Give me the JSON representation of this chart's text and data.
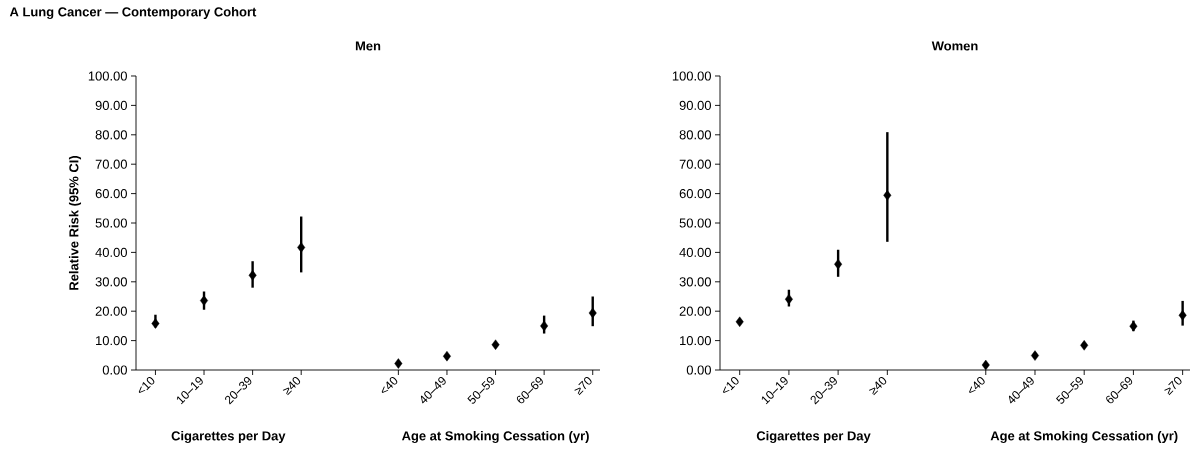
{
  "chart_data": [
    {
      "type": "scatter",
      "title": "Men",
      "ylabel": "Relative Risk (95% CI)",
      "xlabel": "Cigarettes per Day",
      "annotations": [
        "A  Lung Cancer — Contemporary Cohort",
        "Age at Smoking Cessation (yr)"
      ],
      "categories": [
        "<10",
        "10–19",
        "20–39",
        "≥40",
        null,
        "<40",
        "40–49",
        "50–59",
        "60–69",
        "≥70"
      ],
      "color": "#000000",
      "marker": "diamond",
      "values": [
        15.8,
        23.6,
        32.2,
        41.7,
        null,
        2.2,
        4.7,
        8.6,
        15.0,
        19.4
      ],
      "errors": [
        [
          14.5,
          18.8
        ],
        [
          20.5,
          26.7
        ],
        [
          28.0,
          37.0
        ],
        [
          33.2,
          52.2
        ],
        null,
        null,
        null,
        null,
        [
          12.4,
          18.5
        ],
        [
          14.9,
          25.0
        ]
      ],
      "ylim": [
        0,
        100
      ],
      "yticks": [
        {
          "value": 0,
          "label": "0.00"
        },
        {
          "value": 10,
          "label": "10.00"
        },
        {
          "value": 20,
          "label": "20.00"
        },
        {
          "value": 30,
          "label": "30.00"
        },
        {
          "value": 40,
          "label": "40.00"
        },
        {
          "value": 50,
          "label": "50.00"
        },
        {
          "value": 60,
          "label": "60.00"
        },
        {
          "value": 70,
          "label": "70.00"
        },
        {
          "value": 80,
          "label": "80.00"
        },
        {
          "value": 90,
          "label": "90.00"
        },
        {
          "value": 100,
          "label": "100.00"
        }
      ]
    },
    {
      "type": "scatter",
      "title": "Women",
      "xlabel": "Cigarettes per Day",
      "annotations": [
        "Age at Smoking Cessation (yr)"
      ],
      "categories": [
        "<10",
        "10–19",
        "20–39",
        "≥40",
        null,
        "<40",
        "40–49",
        "50–59",
        "60–69",
        "≥70"
      ],
      "color": "#000000",
      "marker": "diamond",
      "values": [
        16.4,
        24.1,
        36.0,
        59.4,
        null,
        1.7,
        4.9,
        8.4,
        14.9,
        18.6
      ],
      "errors": [
        null,
        [
          21.6,
          27.3
        ],
        [
          31.7,
          40.9
        ],
        [
          43.6,
          80.9
        ],
        null,
        null,
        null,
        null,
        [
          13.2,
          16.8
        ],
        [
          15.1,
          23.5
        ]
      ],
      "ylim": [
        0,
        100
      ],
      "yticks": [
        {
          "value": 0,
          "label": "0.00"
        },
        {
          "value": 10,
          "label": "10.00"
        },
        {
          "value": 20,
          "label": "20.00"
        },
        {
          "value": 30,
          "label": "30.00"
        },
        {
          "value": 40,
          "label": "40.00"
        },
        {
          "value": 50,
          "label": "50.00"
        },
        {
          "value": 60,
          "label": "60.00"
        },
        {
          "value": 70,
          "label": "70.00"
        },
        {
          "value": 80,
          "label": "80.00"
        },
        {
          "value": 90,
          "label": "90.00"
        },
        {
          "value": 100,
          "label": "100.00"
        }
      ]
    }
  ]
}
